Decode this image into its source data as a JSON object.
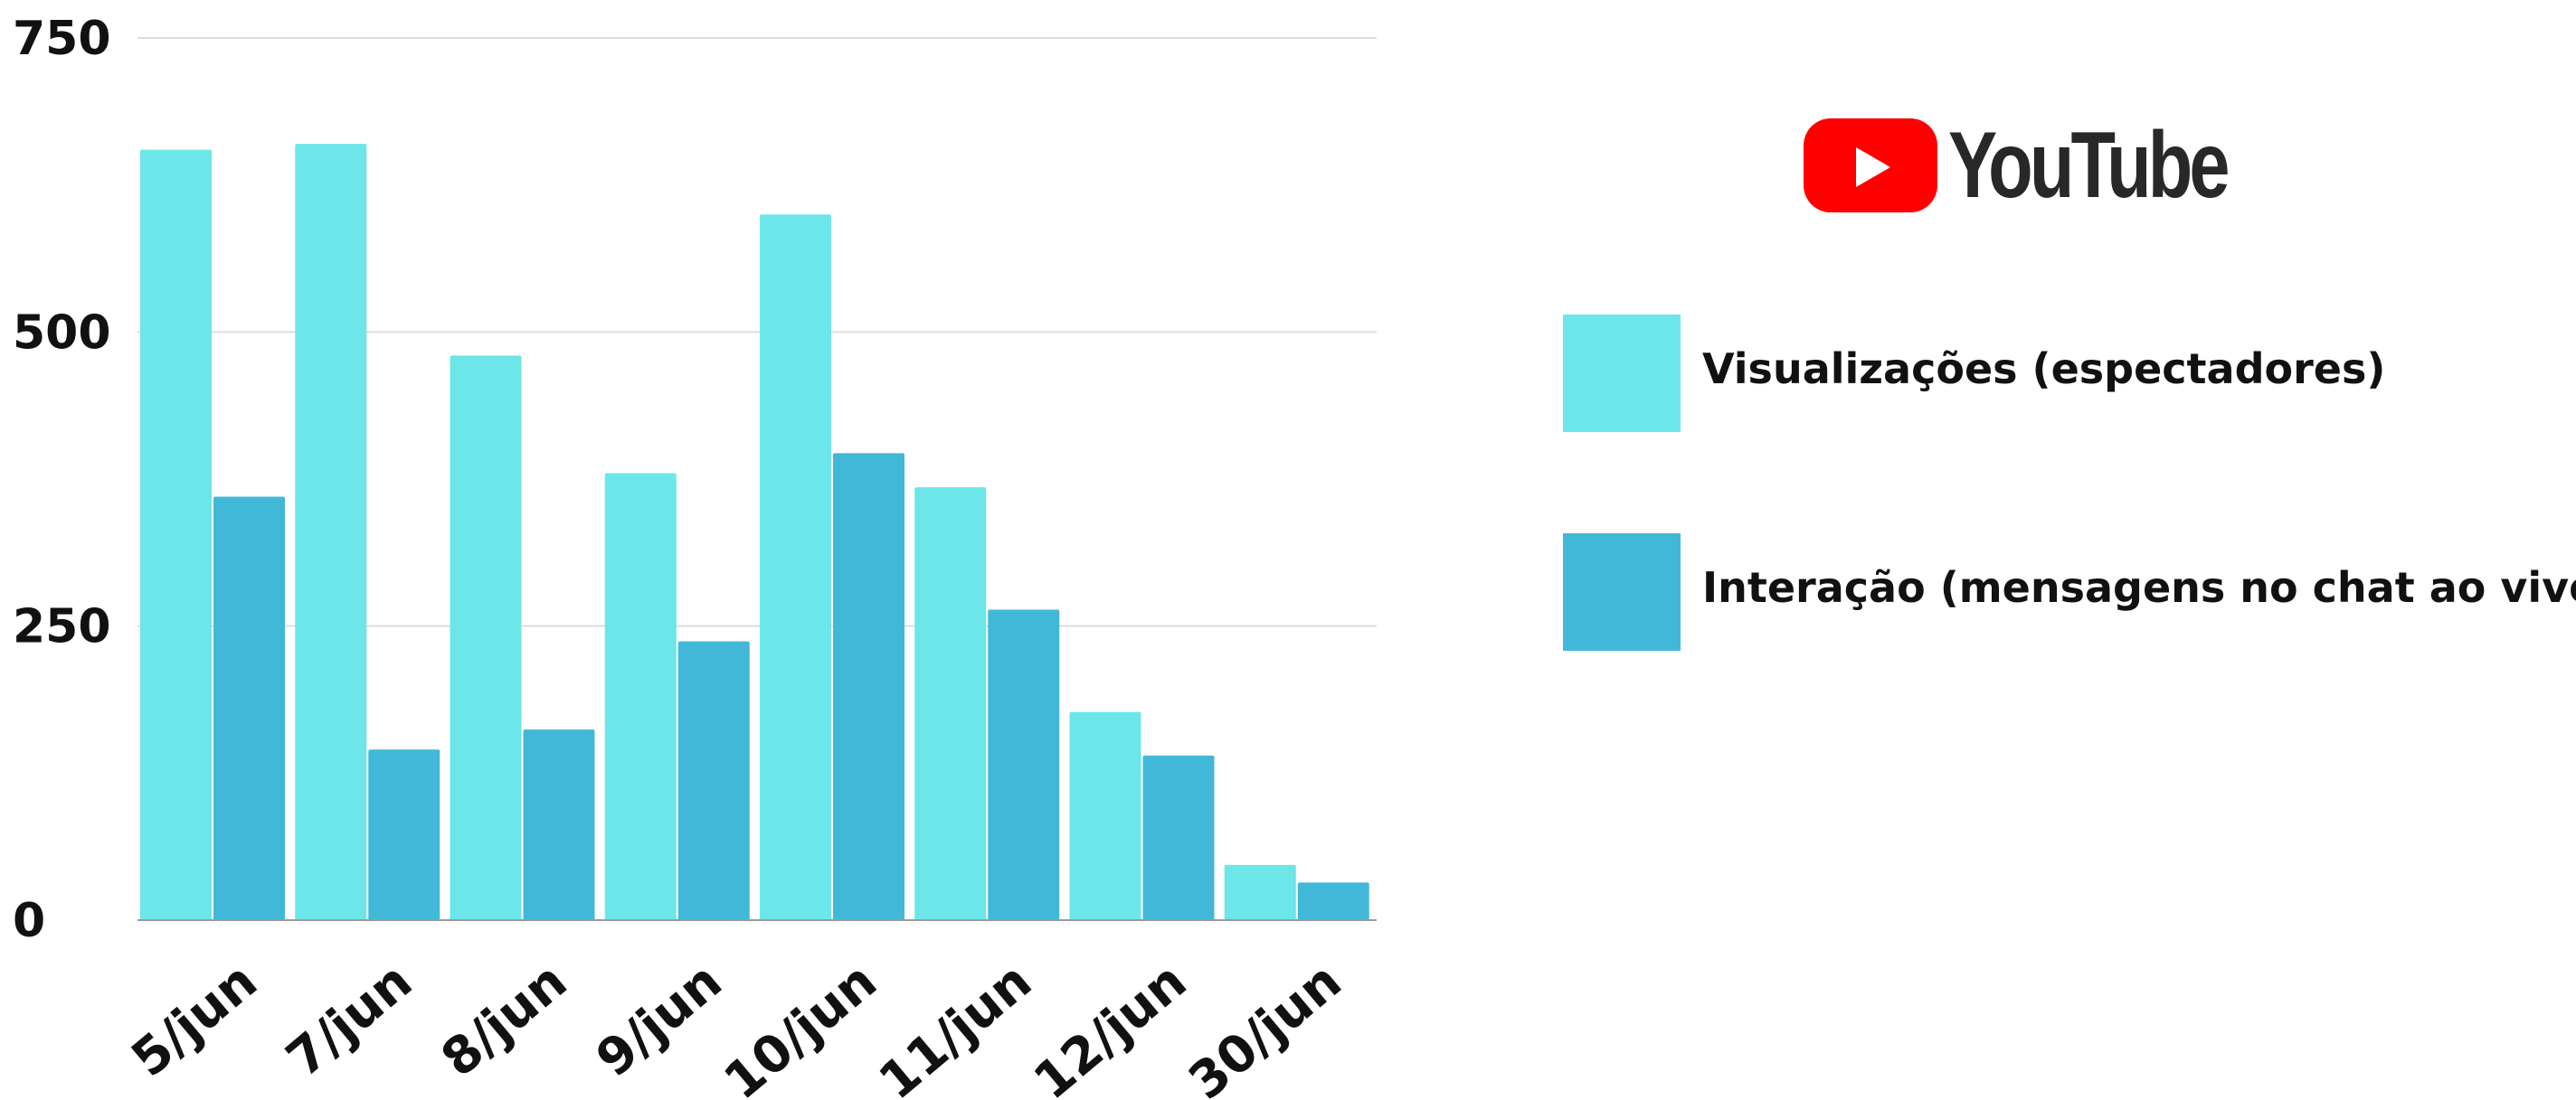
{
  "chart_data": {
    "type": "bar",
    "categories": [
      "5/jun",
      "7/jun",
      "8/jun",
      "9/jun",
      "10/jun",
      "11/jun",
      "12/jun",
      "30/jun"
    ],
    "series": [
      {
        "name": "Visualizações (espectadores)",
        "color": "#6ce6e8",
        "values": [
          655,
          660,
          480,
          380,
          600,
          368,
          177,
          47
        ]
      },
      {
        "name": "Interação (mensagens no chat ao vivo)",
        "color": "#42b8d8",
        "values": [
          360,
          145,
          162,
          237,
          397,
          264,
          140,
          32
        ]
      }
    ],
    "title": "",
    "xlabel": "",
    "ylabel": "",
    "ylim": [
      0,
      750
    ],
    "yticks": [
      0,
      250,
      500,
      750
    ],
    "ytick_labels": [
      "0",
      "250",
      "500",
      "750"
    ],
    "grid": true,
    "legend_position": "right"
  },
  "logo": {
    "icon": "youtube-play-icon",
    "text": "YouTube",
    "color": "#ff0000"
  }
}
